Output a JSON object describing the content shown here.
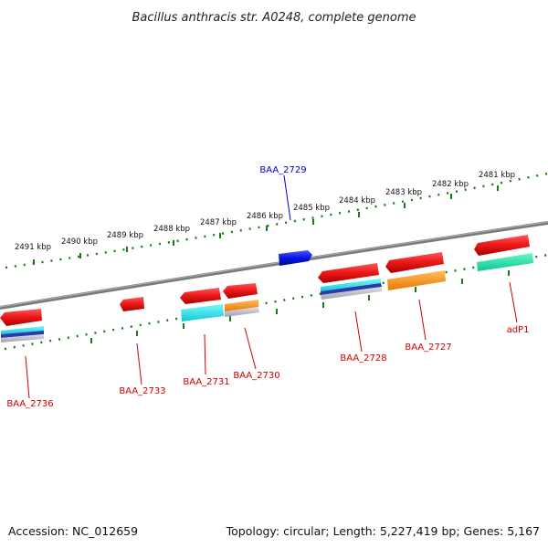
{
  "title": "Bacillus anthracis str. A0248, complete genome",
  "footer": {
    "accession": "Accession: NC_012659",
    "summary": "Topology: circular; Length: 5,227,419 bp; Genes: 5,167"
  },
  "scale": {
    "labels": [
      "2481 kbp",
      "2482 kbp",
      "2483 kbp",
      "2484 kbp",
      "2485 kbp",
      "2486 kbp",
      "2487 kbp",
      "2488 kbp",
      "2489 kbp",
      "2490 kbp",
      "2491 kbp"
    ]
  },
  "genes": [
    {
      "label": "BAA_2729",
      "strand": "forward",
      "label_color": "#0000cc",
      "fill": "#0a12e6"
    },
    {
      "label": "BAA_2736",
      "strand": "reverse",
      "label_color": "#cc0000",
      "fill": "#ee1a1a"
    },
    {
      "label": "BAA_2733",
      "strand": "reverse",
      "label_color": "#cc0000",
      "fill": "#ee1a1a"
    },
    {
      "label": "BAA_2731",
      "strand": "reverse",
      "label_color": "#cc0000",
      "fill": "#ee1a1a"
    },
    {
      "label": "BAA_2730",
      "strand": "reverse",
      "label_color": "#cc0000",
      "fill": "#ee1a1a"
    },
    {
      "label": "BAA_2728",
      "strand": "reverse",
      "label_color": "#cc0000",
      "fill": "#ee1a1a"
    },
    {
      "label": "BAA_2727",
      "strand": "reverse",
      "label_color": "#cc0000",
      "fill": "#ee1a1a"
    },
    {
      "label": "adP1",
      "strand": "reverse",
      "label_color": "#cc0000",
      "fill": "#ee1a1a"
    }
  ],
  "colors": {
    "backbone": "#7a7a7a",
    "ticks": "#1a7a1a",
    "cyan": "#18e6e6",
    "orange": "#ff9a00",
    "teal": "#12d9a0",
    "blue_stripe": "#2a3aa8",
    "gray_stripe": "#b8b8c8"
  }
}
